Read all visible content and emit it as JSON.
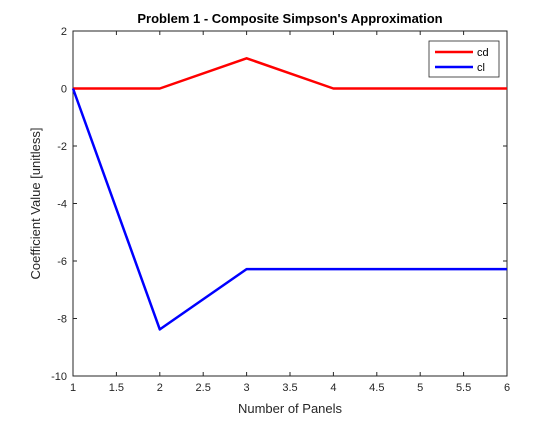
{
  "chart_data": {
    "type": "line",
    "title": "Problem 1 - Composite Simpson's Approximation",
    "xlabel": "Number of Panels",
    "ylabel": "Coefficient Value [unitless]",
    "xlim": [
      1,
      6
    ],
    "ylim": [
      -10,
      2
    ],
    "xticks": [
      1,
      1.5,
      2,
      2.5,
      3,
      3.5,
      4,
      4.5,
      5,
      5.5,
      6
    ],
    "xtick_labels": [
      "1",
      "1.5",
      "2",
      "2.5",
      "3",
      "3.5",
      "4",
      "4.5",
      "5",
      "5.5",
      "6"
    ],
    "yticks": [
      -10,
      -8,
      -6,
      -4,
      -2,
      0,
      2
    ],
    "ytick_labels": [
      "-10",
      "-8",
      "-6",
      "-4",
      "-2",
      "0",
      "2"
    ],
    "grid": false,
    "legend": "top-right",
    "x": [
      1,
      2,
      3,
      4,
      5,
      6
    ],
    "series": [
      {
        "name": "cd",
        "color": "#ff0000",
        "values": [
          0,
          0,
          1.05,
          0,
          0,
          0
        ]
      },
      {
        "name": "cl",
        "color": "#0000ff",
        "values": [
          0,
          -8.38,
          -6.28,
          -6.28,
          -6.28,
          -6.28
        ]
      }
    ]
  }
}
